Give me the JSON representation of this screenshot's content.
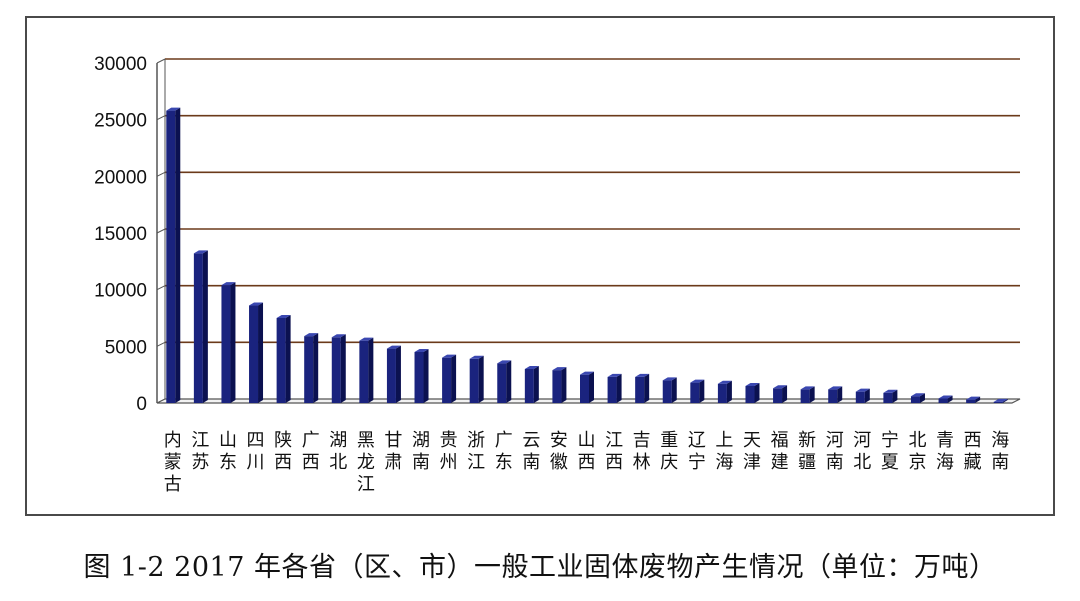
{
  "caption": "图 1-2 2017 年各省（区、市）一般工业固体废物产生情况（单位：万吨）",
  "colors": {
    "bar_front": "#1a237e",
    "bar_side": "#0b1150",
    "bar_top": "#3a47b0",
    "gridline": "#6b3a1a",
    "axis": "#555555",
    "text": "#111111"
  },
  "chart_data": {
    "type": "bar",
    "style": "3d-column",
    "title": "",
    "xlabel": "",
    "ylabel": "",
    "ylim": [
      0,
      30000
    ],
    "yticks": [
      "0",
      "5000",
      "10000",
      "15000",
      "20000",
      "25000",
      "30000"
    ],
    "grid": true,
    "legend": "none",
    "categories": [
      "内蒙古",
      "江苏",
      "山东",
      "四川",
      "陕西",
      "广西",
      "湖北",
      "黑龙江",
      "甘肃",
      "湖南",
      "贵州",
      "浙江",
      "广东",
      "云南",
      "安徽",
      "山西",
      "江西",
      "吉林",
      "重庆",
      "辽宁",
      "上海",
      "天津",
      "福建",
      "新疆",
      "河南",
      "河北",
      "宁夏",
      "北京",
      "青海",
      "西藏",
      "海南"
    ],
    "values": [
      25800,
      13200,
      10400,
      8600,
      7500,
      5900,
      5800,
      5500,
      4800,
      4500,
      4000,
      3900,
      3500,
      3000,
      2900,
      2500,
      2300,
      2300,
      2000,
      1800,
      1700,
      1500,
      1300,
      1200,
      1200,
      1000,
      900,
      600,
      400,
      300,
      100
    ]
  }
}
